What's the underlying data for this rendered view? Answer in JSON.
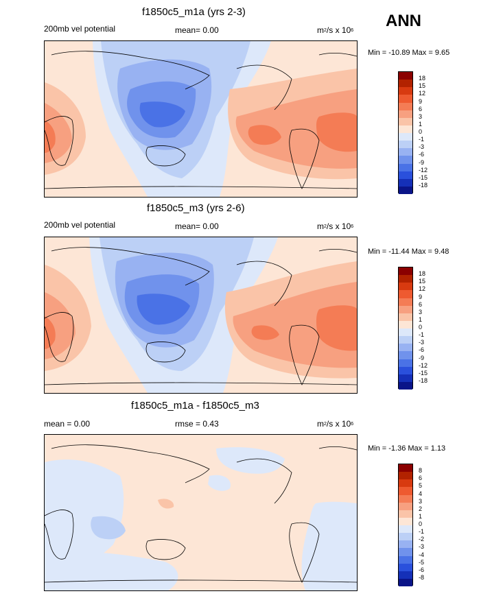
{
  "season": "ANN",
  "units_prefix": "m",
  "units_sup1": "2",
  "units_mid": "/s x 10",
  "units_sup2": "6",
  "panel1": {
    "title": "f1850c5_m1a (yrs 2-3)",
    "left_label": "200mb vel potential",
    "mean_label": "mean=  0.00",
    "minmax": "Min = -10.89 Max =   9.65"
  },
  "panel2": {
    "title": "f1850c5_m3 (yrs 2-6)",
    "left_label": "200mb vel potential",
    "mean_label": "mean=  0.00",
    "minmax": "Min = -11.44 Max =   9.48"
  },
  "panel3": {
    "title": "f1850c5_m1a - f1850c5_m3",
    "left_label": "mean =   0.00",
    "mean_label": "rmse =  0.43",
    "minmax": "Min = -1.36 Max =   1.13"
  },
  "colorbar_main": {
    "levels": [
      "18",
      "15",
      "12",
      "9",
      "6",
      "3",
      "1",
      "0",
      "-1",
      "-3",
      "-6",
      "-9",
      "-12",
      "-15",
      "-18"
    ],
    "colors": [
      "#8b0000",
      "#b22200",
      "#d83a10",
      "#ee5a30",
      "#f47c55",
      "#f7a080",
      "#fac4a8",
      "#fde6d6",
      "#dde8fa",
      "#bcd0f6",
      "#98b2f2",
      "#7092ec",
      "#4a72e6",
      "#2a50dc",
      "#1530b8",
      "#0a1488"
    ]
  },
  "colorbar_diff": {
    "levels": [
      "8",
      "6",
      "5",
      "4",
      "3",
      "2",
      "1",
      "0",
      "-1",
      "-2",
      "-3",
      "-4",
      "-5",
      "-6",
      "-8"
    ],
    "colors": [
      "#8b0000",
      "#b22200",
      "#d83a10",
      "#ee5a30",
      "#f47c55",
      "#f7a080",
      "#fac4a8",
      "#fde6d6",
      "#dde8fa",
      "#bcd0f6",
      "#98b2f2",
      "#7092ec",
      "#4a72e6",
      "#2a50dc",
      "#1530b8",
      "#0a1488"
    ]
  },
  "chart_data": [
    {
      "type": "heatmap",
      "title": "f1850c5_m1a (yrs 2-3)",
      "variable": "200mb vel potential",
      "units": "m2/s x 10^6",
      "mean": 0.0,
      "min": -10.89,
      "max": 9.65,
      "contour_levels": [
        -18,
        -15,
        -12,
        -9,
        -6,
        -3,
        -1,
        0,
        1,
        3,
        6,
        9,
        12,
        15,
        18
      ]
    },
    {
      "type": "heatmap",
      "title": "f1850c5_m3 (yrs 2-6)",
      "variable": "200mb vel potential",
      "units": "m2/s x 10^6",
      "mean": 0.0,
      "min": -11.44,
      "max": 9.48,
      "contour_levels": [
        -18,
        -15,
        -12,
        -9,
        -6,
        -3,
        -1,
        0,
        1,
        3,
        6,
        9,
        12,
        15,
        18
      ]
    },
    {
      "type": "heatmap",
      "title": "f1850c5_m1a - f1850c5_m3",
      "units": "m2/s x 10^6",
      "mean": 0.0,
      "rmse": 0.43,
      "min": -1.36,
      "max": 1.13,
      "contour_levels": [
        -8,
        -6,
        -5,
        -4,
        -3,
        -2,
        -1,
        0,
        1,
        2,
        3,
        4,
        5,
        6,
        8
      ]
    }
  ]
}
